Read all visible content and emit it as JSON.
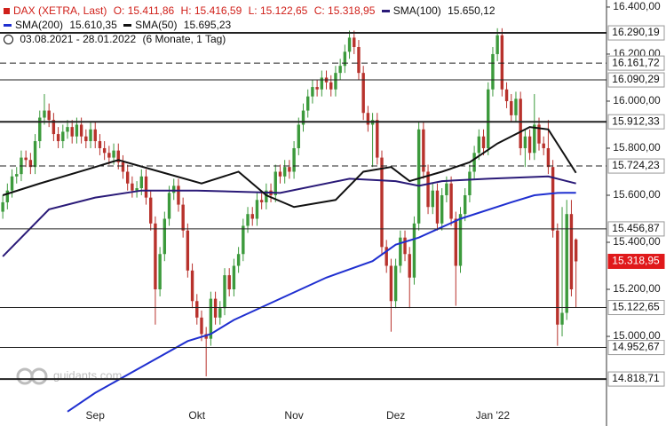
{
  "chart_data": {
    "type": "candlestick",
    "title": "DAX (XETRA, Last)",
    "ohlc_labels": [
      "O: 15.411,86",
      "H: 15.416,59",
      "L: 15.122,65",
      "C: 15.318,95"
    ],
    "range_label": "03.08.2021 - 28.01.2022",
    "period_label": "(6 Monate, 1 Tag)",
    "watermark": "guidants.com",
    "up_color": "#3c9a3c",
    "down_color": "#b8322c",
    "open": [
      15530,
      15570,
      15620,
      15680,
      15690,
      15760,
      15750,
      15720,
      15830,
      15930,
      15960,
      15920,
      15860,
      15830,
      15870,
      15890,
      15850,
      15900,
      15850,
      15830,
      15880,
      15830,
      15800,
      15780,
      15760,
      15790,
      15740,
      15700,
      15650,
      15620,
      15630,
      15680,
      15590,
      15480,
      15200,
      15350,
      15500,
      15610,
      15640,
      15560,
      15450,
      15280,
      15150,
      15080,
      15010,
      14990,
      15160,
      15080,
      15120,
      15260,
      15200,
      15300,
      15350,
      15470,
      15520,
      15500,
      15580,
      15570,
      15620,
      15600,
      15700,
      15680,
      15720,
      15700,
      15800,
      15900,
      15960,
      16020,
      16060,
      16050,
      16100,
      16080,
      16050,
      16120,
      16150,
      16210,
      16270,
      16230,
      16120,
      15950,
      15900,
      15920,
      15760,
      15380,
      15300,
      15150,
      15300,
      15420,
      15350,
      15250,
      15480,
      15880,
      15700,
      15550,
      15620,
      15480,
      15600,
      15650,
      15500,
      15300,
      15520,
      15600,
      15700,
      15780,
      15850,
      15800,
      16050,
      16200,
      16280,
      16050,
      16000,
      15940,
      16010,
      15800,
      15850,
      15780,
      15900,
      15820,
      15800,
      15720,
      15450,
      15050,
      15100,
      15520,
      15411.86
    ],
    "high": [
      15600,
      15650,
      15710,
      15720,
      15790,
      15790,
      15780,
      15860,
      15960,
      16030,
      15990,
      15950,
      15890,
      15900,
      15920,
      15920,
      15930,
      15930,
      15880,
      15910,
      15910,
      15860,
      15830,
      15810,
      15820,
      15820,
      15770,
      15730,
      15680,
      15660,
      15710,
      15710,
      15620,
      15510,
      15380,
      15530,
      15640,
      15670,
      15670,
      15590,
      15480,
      15310,
      15180,
      15110,
      15040,
      15190,
      15190,
      15150,
      15290,
      15290,
      15330,
      15380,
      15500,
      15550,
      15550,
      15610,
      15610,
      15650,
      15650,
      15730,
      15730,
      15750,
      15750,
      15830,
      15930,
      15990,
      16050,
      16090,
      16090,
      16130,
      16130,
      16110,
      16150,
      16180,
      16240,
      16300,
      16300,
      16260,
      16150,
      15980,
      15950,
      15950,
      15790,
      15410,
      15330,
      15330,
      15450,
      15450,
      15380,
      15510,
      15910,
      15910,
      15730,
      15650,
      15650,
      15630,
      15680,
      15680,
      15530,
      15550,
      15630,
      15730,
      15810,
      15880,
      15880,
      16080,
      16230,
      16310,
      16310,
      16080,
      16030,
      16040,
      16040,
      15880,
      15880,
      16030,
      15930,
      15850,
      15920,
      15750,
      15480,
      15550,
      15580,
      15580,
      15416.59
    ],
    "low": [
      15500,
      15540,
      15590,
      15650,
      15660,
      15720,
      15690,
      15690,
      15800,
      15900,
      15890,
      15830,
      15800,
      15800,
      15840,
      15820,
      15820,
      15820,
      15800,
      15800,
      15800,
      15770,
      15750,
      15730,
      15730,
      15710,
      15670,
      15620,
      15590,
      15590,
      15600,
      15560,
      15450,
      15050,
      15170,
      15320,
      15470,
      15580,
      15530,
      15420,
      15250,
      15120,
      15050,
      14980,
      14830,
      14960,
      15050,
      15050,
      15090,
      15170,
      15170,
      15270,
      15320,
      15440,
      15470,
      15470,
      15540,
      15540,
      15570,
      15570,
      15650,
      15650,
      15670,
      15670,
      15770,
      15870,
      15930,
      15990,
      16020,
      16020,
      16050,
      16020,
      16020,
      16090,
      16120,
      16180,
      16200,
      16090,
      15920,
      15870,
      15720,
      15730,
      15350,
      15270,
      15020,
      15120,
      15270,
      15320,
      15120,
      15220,
      15450,
      15670,
      15520,
      15520,
      15450,
      15450,
      15570,
      15470,
      15130,
      15270,
      15490,
      15570,
      15670,
      15750,
      15770,
      15770,
      16020,
      16170,
      16020,
      15970,
      15910,
      15910,
      15770,
      15720,
      15750,
      15750,
      15790,
      15770,
      15690,
      15420,
      14960,
      15000,
      15070,
      15170,
      15122.65
    ],
    "close": [
      15570,
      15620,
      15680,
      15690,
      15760,
      15750,
      15720,
      15830,
      15930,
      15960,
      15920,
      15860,
      15830,
      15870,
      15890,
      15850,
      15900,
      15850,
      15830,
      15880,
      15830,
      15800,
      15780,
      15760,
      15790,
      15740,
      15700,
      15650,
      15620,
      15630,
      15680,
      15590,
      15480,
      15200,
      15350,
      15500,
      15610,
      15640,
      15560,
      15450,
      15280,
      15150,
      15080,
      15010,
      14990,
      15160,
      15080,
      15120,
      15260,
      15200,
      15300,
      15350,
      15470,
      15520,
      15500,
      15580,
      15570,
      15620,
      15600,
      15700,
      15680,
      15720,
      15700,
      15800,
      15900,
      15960,
      16020,
      16060,
      16050,
      16100,
      16080,
      16050,
      16120,
      16150,
      16210,
      16270,
      16230,
      16120,
      15950,
      15900,
      15920,
      15760,
      15380,
      15300,
      15150,
      15300,
      15420,
      15350,
      15250,
      15480,
      15880,
      15700,
      15550,
      15620,
      15480,
      15600,
      15650,
      15500,
      15300,
      15520,
      15600,
      15700,
      15780,
      15850,
      15800,
      16050,
      16200,
      16280,
      16050,
      16000,
      15940,
      16010,
      15800,
      15850,
      15780,
      15900,
      15820,
      15800,
      15720,
      15450,
      15050,
      15100,
      15520,
      15200,
      15318.95
    ],
    "indicators": [
      {
        "name": "SMA(100)",
        "color": "#2a1a78",
        "last_label": "15.650,12",
        "x": [
          0,
          10,
          20,
          30,
          42,
          60,
          75,
          85,
          90,
          95,
          105,
          118,
          124
        ],
        "values": [
          15340,
          15540,
          15590,
          15620,
          15620,
          15610,
          15670,
          15660,
          15640,
          15660,
          15670,
          15680,
          15650.12
        ]
      },
      {
        "name": "SMA(200)",
        "color": "#1f2fd0",
        "last_label": "15.610,35",
        "x": [
          14,
          20,
          30,
          40,
          45,
          50,
          60,
          70,
          80,
          85,
          90,
          99,
          110,
          115,
          120,
          124
        ],
        "values": [
          14680,
          14760,
          14870,
          14980,
          15010,
          15070,
          15160,
          15250,
          15320,
          15390,
          15420,
          15500,
          15570,
          15600,
          15610,
          15610.35
        ]
      },
      {
        "name": "SMA(50)",
        "color": "#111111",
        "last_label": "15.695,23",
        "x": [
          0,
          8,
          20,
          25,
          34,
          43,
          51,
          57,
          63,
          72,
          78,
          84,
          88,
          95,
          101,
          107,
          114,
          118,
          124
        ],
        "values": [
          15600,
          15650,
          15720,
          15750,
          15700,
          15650,
          15700,
          15600,
          15550,
          15580,
          15700,
          15720,
          15660,
          15700,
          15740,
          15820,
          15890,
          15880,
          15695.23
        ]
      }
    ],
    "levels": [
      {
        "value": 16290.19,
        "label": "16.290,19",
        "style": "thick"
      },
      {
        "value": 16161.72,
        "label": "16.161,72",
        "style": "dashed"
      },
      {
        "value": 16090.29,
        "label": "16.090,29",
        "style": "thin"
      },
      {
        "value": 15912.33,
        "label": "15.912,33",
        "style": "thick"
      },
      {
        "value": 15724.23,
        "label": "15.724,23",
        "style": "dashed"
      },
      {
        "value": 15456.87,
        "label": "15.456,87",
        "style": "thin"
      },
      {
        "value": 15318.95,
        "label": "15.318,95",
        "style": "current"
      },
      {
        "value": 15122.65,
        "label": "15.122,65",
        "style": "thin"
      },
      {
        "value": 14952.67,
        "label": "14.952,67",
        "style": "thin"
      },
      {
        "value": 14818.71,
        "label": "14.818,71",
        "style": "thick"
      }
    ],
    "xlim": [
      -0.6,
      130.6
    ],
    "xticks": [
      {
        "value": 20,
        "label": "Sep"
      },
      {
        "value": 42,
        "label": "Okt"
      },
      {
        "value": 63,
        "label": "Nov"
      },
      {
        "value": 85,
        "label": "Dez"
      },
      {
        "value": 106,
        "label": "Jan '22"
      }
    ],
    "ylim": [
      14619,
      16430
    ],
    "yticks": [
      {
        "value": 16400,
        "label": "16.400,00"
      },
      {
        "value": 16200,
        "label": "16.200,00"
      },
      {
        "value": 16000,
        "label": "16.000,00"
      },
      {
        "value": 15800,
        "label": "15.800,00"
      },
      {
        "value": 15600,
        "label": "15.600,00"
      },
      {
        "value": 15400,
        "label": "15.400,00"
      },
      {
        "value": 15200,
        "label": "15.200,00"
      },
      {
        "value": 15000,
        "label": "15.000,00"
      }
    ]
  }
}
